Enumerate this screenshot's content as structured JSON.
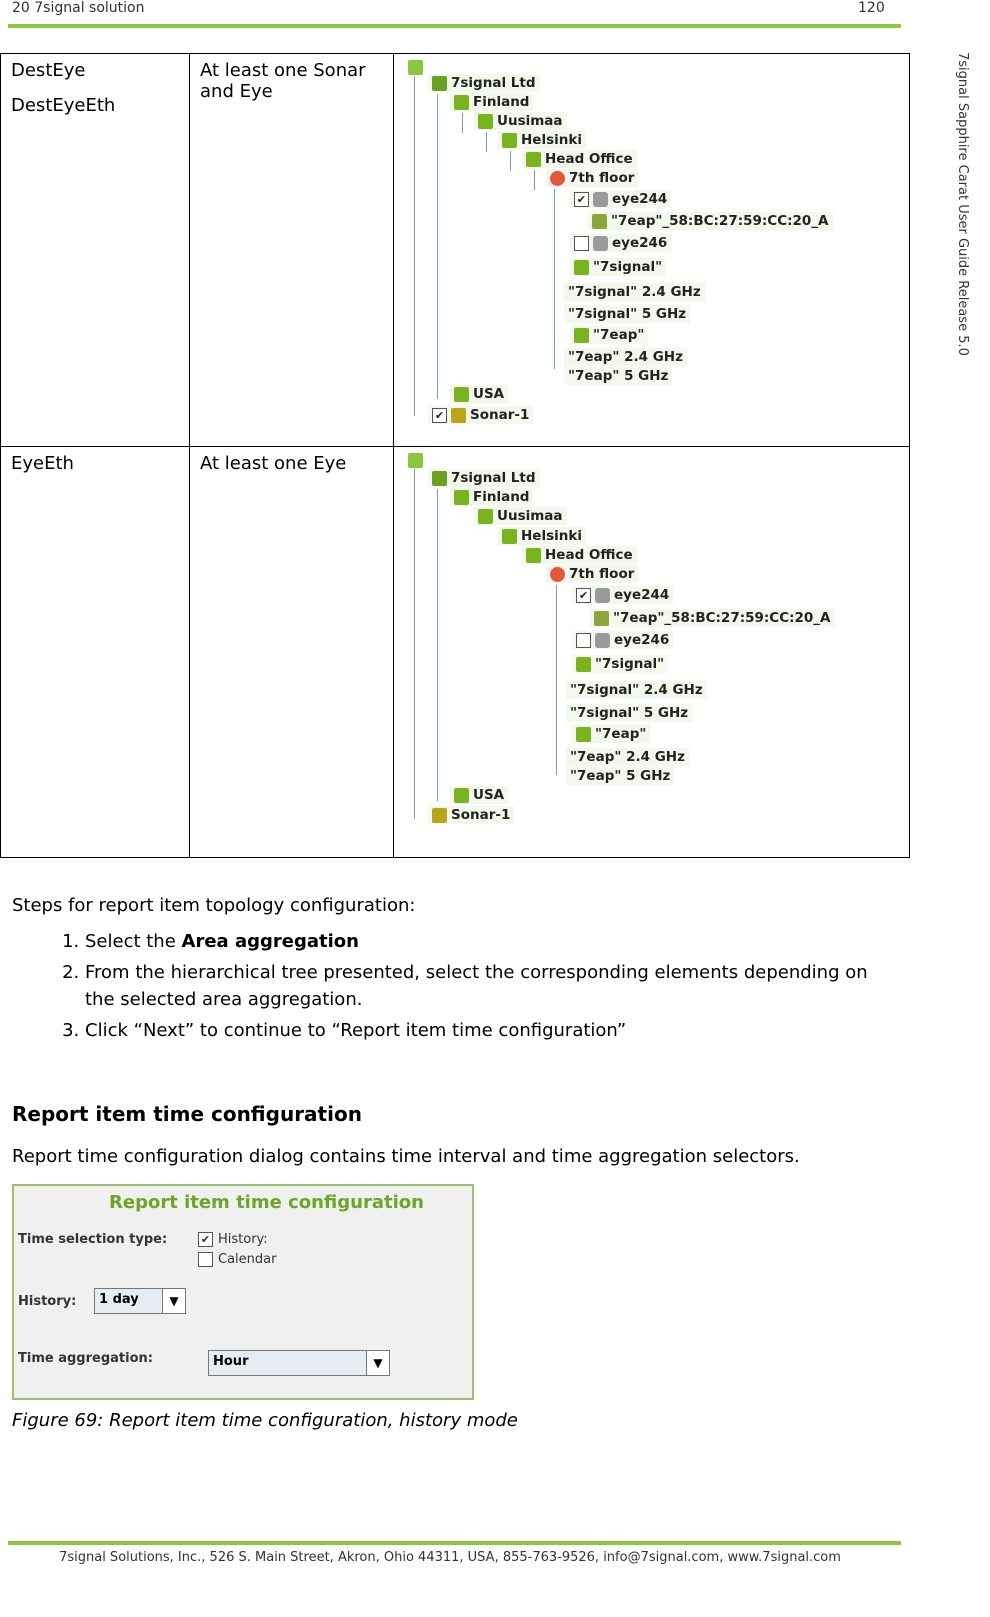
{
  "header": {
    "left": "20 7signal solution",
    "right": "120"
  },
  "sidebar_text": "7signal Sapphire Carat User Guide Release 5.0",
  "table": {
    "rows": [
      {
        "col1": [
          "DestEye",
          "DestEyeEth"
        ],
        "col2": "At least one Sonar and Eye"
      },
      {
        "col1": [
          "EyeEth"
        ],
        "col2": "At least one Eye"
      }
    ]
  },
  "tree1": {
    "nodes": [
      "7signal Ltd",
      "Finland",
      "Uusimaa",
      "Helsinki",
      "Head Office",
      "7th floor",
      "eye244",
      "\"7eap\"_58:BC:27:59:CC:20_A",
      "eye246",
      "\"7signal\"",
      "\"7signal\" 2.4 GHz",
      "\"7signal\" 5 GHz",
      "\"7eap\"",
      "\"7eap\" 2.4 GHz",
      "\"7eap\" 5 GHz",
      "USA",
      "Sonar-1"
    ],
    "checked": [
      "✔",
      "",
      "✔"
    ]
  },
  "tree2": {
    "nodes": [
      "7signal Ltd",
      "Finland",
      "Uusimaa",
      "Helsinki",
      "Head Office",
      "7th floor",
      "eye244",
      "\"7eap\"_58:BC:27:59:CC:20_A",
      "eye246",
      "\"7signal\"",
      "\"7signal\" 2.4 GHz",
      "\"7signal\" 5 GHz",
      "\"7eap\"",
      "\"7eap\" 2.4 GHz",
      "\"7eap\" 5 GHz",
      "USA",
      "Sonar-1"
    ],
    "checked": [
      "✔",
      ""
    ]
  },
  "steps": {
    "intro": "Steps for report item topology configuration:",
    "items": [
      {
        "pre": "Select the ",
        "bold": "Area aggregation",
        "post": ""
      },
      {
        "pre": "From the hierarchical tree presented, select the corresponding elements depending on the selected area aggregation.",
        "bold": "",
        "post": ""
      },
      {
        "pre": "Click “Next” to continue to “Report item time configuration”",
        "bold": "",
        "post": ""
      }
    ]
  },
  "section": {
    "title": "Report item time configuration",
    "description": "Report time configuration dialog contains time interval and time aggregation selectors."
  },
  "dialog": {
    "title": "Report item time configuration",
    "time_selection_label": "Time selection type:",
    "history_option": "History:",
    "calendar_option": "Calendar",
    "history_check": "✔",
    "history_label": "History:",
    "history_value": "1 day",
    "aggregation_label": "Time aggregation:",
    "aggregation_value": "Hour",
    "arrow": "▼"
  },
  "caption": "Figure 69: Report item time configuration, history mode",
  "footer": "7signal Solutions, Inc., 526 S. Main Street, Akron, Ohio 44311, USA, 855-763-9526, info@7signal.com, www.7signal.com"
}
